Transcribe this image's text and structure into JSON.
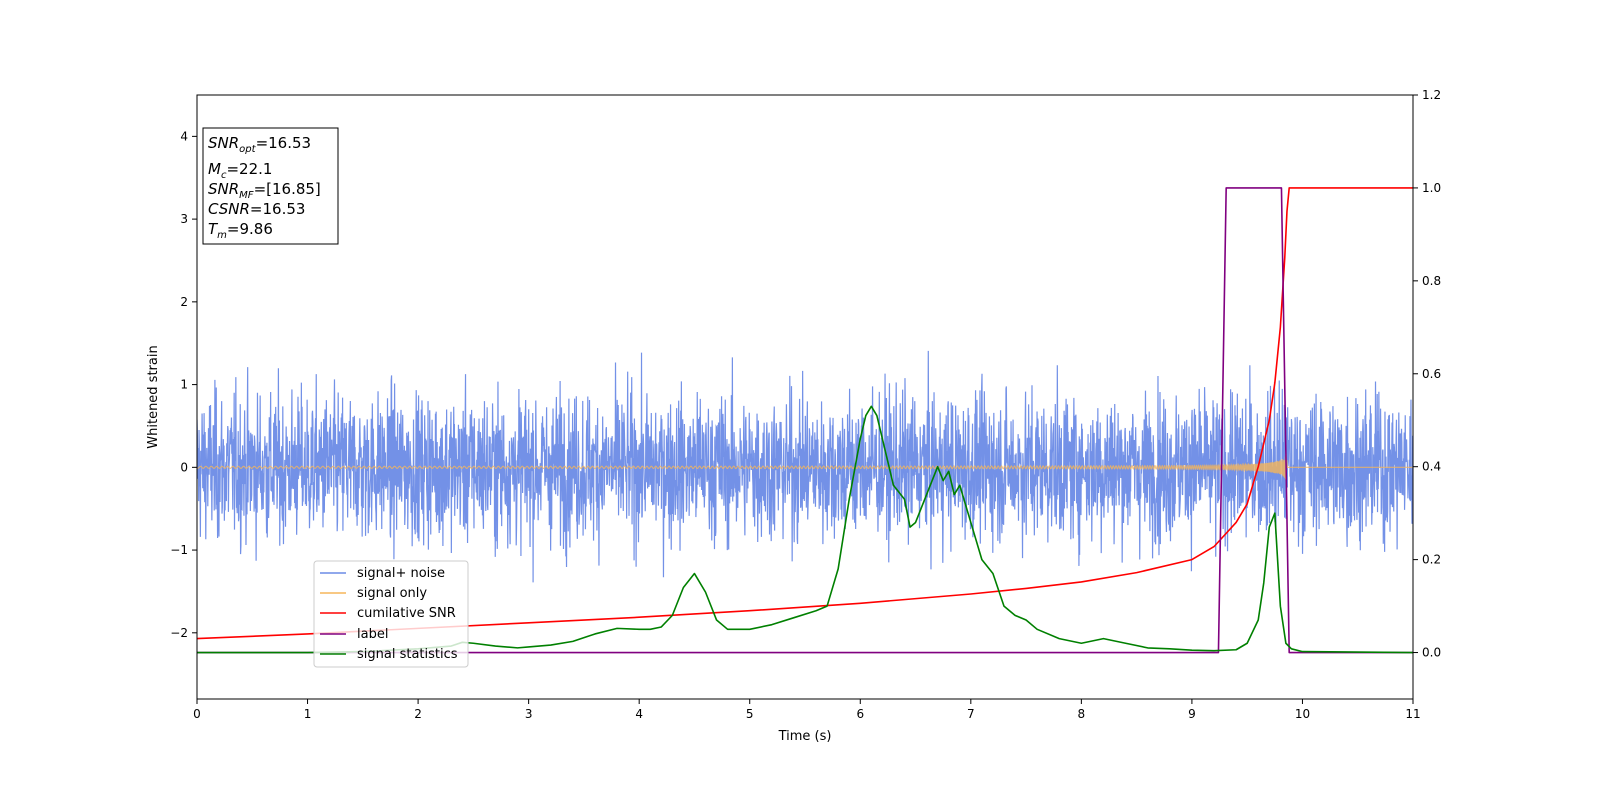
{
  "chart_data": {
    "type": "line",
    "xlabel": "Time (s)",
    "ylabel": "Whitened strain",
    "xlim": [
      0,
      11
    ],
    "ylim": [
      -2.8,
      4.5
    ],
    "y2lim": [
      -0.1,
      1.2
    ],
    "xticks": [
      0,
      1,
      2,
      3,
      4,
      5,
      6,
      7,
      8,
      9,
      10,
      11
    ],
    "yticks": [
      -2,
      -1,
      0,
      1,
      2,
      3,
      4
    ],
    "y2ticks": [
      0.0,
      0.2,
      0.4,
      0.6,
      0.8,
      1.0,
      1.2
    ],
    "xtick_labels": [
      "0",
      "1",
      "2",
      "3",
      "4",
      "5",
      "6",
      "7",
      "8",
      "9",
      "10",
      "11"
    ],
    "ytick_labels": [
      "−2",
      "−1",
      "0",
      "1",
      "2",
      "3",
      "4"
    ],
    "y2tick_labels": [
      "0.0",
      "0.2",
      "0.4",
      "0.6",
      "0.8",
      "1.0",
      "1.2"
    ],
    "annotation": {
      "snr_opt": {
        "sym": "SNR",
        "sub": "opt",
        "value": "=16.53"
      },
      "mc": {
        "sym": "M",
        "sub": "c",
        "value": "=22.1"
      },
      "snr_mf": {
        "sym": "SNR",
        "sub": "MF",
        "value": "=[16.85]"
      },
      "csnr": {
        "sym": "CSNR",
        "sub": "",
        "value": "=16.53"
      },
      "tm": {
        "sym": "T",
        "sub": "m",
        "value": "=9.86"
      }
    },
    "legend_position": "lower-left",
    "series": [
      {
        "name": "signal+ noise",
        "color": "#6c8be6",
        "axis": "left",
        "kind": "noise",
        "amplitude": 1.0,
        "range": [
          0,
          11
        ]
      },
      {
        "name": "signal only",
        "color": "#f5b55a",
        "axis": "left",
        "kind": "chirp",
        "t_merge": 9.86
      },
      {
        "name": "cumilative SNR",
        "color": "#ff0000",
        "axis": "right",
        "x": [
          0,
          1,
          2,
          3,
          4,
          5,
          6,
          7,
          7.5,
          8,
          8.5,
          9,
          9.2,
          9.4,
          9.5,
          9.6,
          9.7,
          9.75,
          9.8,
          9.84,
          9.86,
          9.88,
          11
        ],
        "y": [
          0.03,
          0.04,
          0.052,
          0.064,
          0.076,
          0.09,
          0.106,
          0.126,
          0.138,
          0.152,
          0.172,
          0.2,
          0.228,
          0.28,
          0.32,
          0.4,
          0.5,
          0.58,
          0.7,
          0.85,
          0.95,
          1.0,
          1.0
        ]
      },
      {
        "name": "label",
        "color": "#800080",
        "axis": "right",
        "x": [
          0,
          9.24,
          9.31,
          9.81,
          9.88,
          11
        ],
        "y": [
          0,
          0,
          1,
          1,
          0,
          0
        ]
      },
      {
        "name": "signal statistics",
        "color": "#008000",
        "axis": "right",
        "x": [
          0,
          1,
          1.5,
          2,
          2.3,
          2.4,
          2.5,
          2.7,
          2.9,
          3,
          3.2,
          3.4,
          3.6,
          3.8,
          4,
          4.1,
          4.2,
          4.3,
          4.4,
          4.5,
          4.6,
          4.7,
          4.8,
          5,
          5.2,
          5.4,
          5.6,
          5.7,
          5.8,
          5.9,
          6.0,
          6.05,
          6.1,
          6.15,
          6.2,
          6.3,
          6.4,
          6.45,
          6.5,
          6.6,
          6.7,
          6.75,
          6.8,
          6.85,
          6.9,
          7.0,
          7.1,
          7.2,
          7.3,
          7.4,
          7.5,
          7.6,
          7.8,
          8,
          8.2,
          8.4,
          8.6,
          8.8,
          9,
          9.2,
          9.4,
          9.5,
          9.6,
          9.65,
          9.7,
          9.75,
          9.8,
          9.85,
          9.9,
          10,
          11
        ],
        "y": [
          0.0,
          0.0,
          0.002,
          0.008,
          0.014,
          0.022,
          0.02,
          0.014,
          0.01,
          0.012,
          0.016,
          0.024,
          0.04,
          0.052,
          0.05,
          0.05,
          0.055,
          0.08,
          0.14,
          0.17,
          0.13,
          0.07,
          0.05,
          0.05,
          0.06,
          0.075,
          0.09,
          0.1,
          0.18,
          0.33,
          0.46,
          0.51,
          0.53,
          0.51,
          0.46,
          0.36,
          0.33,
          0.27,
          0.28,
          0.34,
          0.4,
          0.37,
          0.39,
          0.34,
          0.36,
          0.28,
          0.2,
          0.17,
          0.1,
          0.08,
          0.07,
          0.05,
          0.03,
          0.02,
          0.03,
          0.02,
          0.01,
          0.008,
          0.005,
          0.004,
          0.006,
          0.02,
          0.07,
          0.15,
          0.27,
          0.3,
          0.1,
          0.02,
          0.008,
          0.002,
          0.0
        ]
      }
    ]
  }
}
